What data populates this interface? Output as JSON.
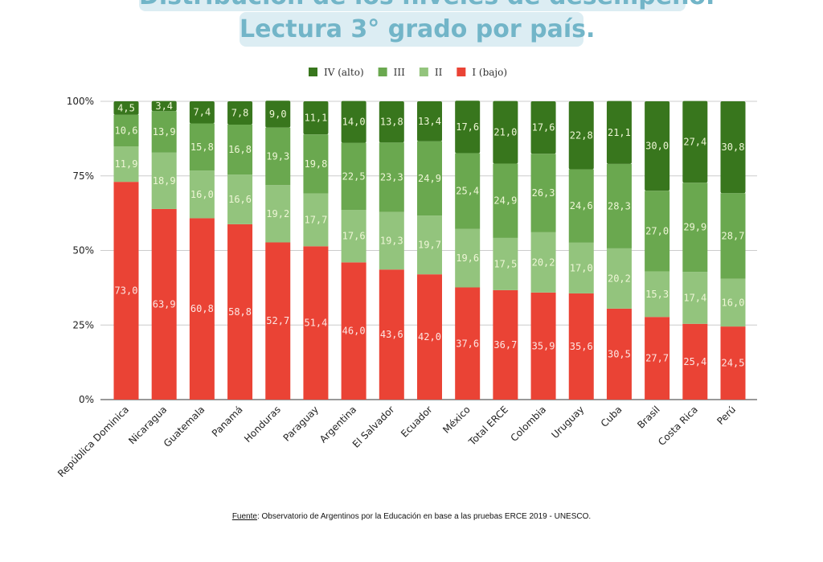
{
  "title_line1": "Distribución de los niveles de desempeño.",
  "title_line2": "Lectura 3° grado por país.",
  "footnote_label": "Fuente",
  "footnote_text": ": Observatorio de Argentinos por la Educación en base a las pruebas ERCE 2019 - UNESCO.",
  "chart_data": {
    "type": "bar",
    "stacked": true,
    "percent": true,
    "categories": [
      "República Dominica",
      "Nicaragua",
      "Guatemala",
      "Panamá",
      "Honduras",
      "Paraguay",
      "Argentina",
      "El Salvador",
      "Ecuador",
      "México",
      "Total ERCE",
      "Colombia",
      "Uruguay",
      "Cuba",
      "Brasil",
      "Costa Rica",
      "Perú"
    ],
    "series": [
      {
        "name": "I (bajo)",
        "color": "#ea4335",
        "values": [
          73.0,
          63.9,
          60.8,
          58.8,
          52.7,
          51.4,
          46.0,
          43.6,
          42.0,
          37.6,
          36.7,
          35.9,
          35.6,
          30.5,
          27.7,
          25.4,
          24.5
        ]
      },
      {
        "name": "II",
        "color": "#93c47d",
        "values": [
          11.9,
          18.9,
          16.0,
          16.6,
          19.2,
          17.7,
          17.6,
          19.3,
          19.7,
          19.6,
          17.5,
          20.2,
          17.0,
          20.2,
          15.3,
          17.4,
          16.0
        ]
      },
      {
        "name": "III",
        "color": "#6aa84f",
        "values": [
          10.6,
          13.9,
          15.8,
          16.8,
          19.3,
          19.8,
          22.5,
          23.3,
          24.9,
          25.4,
          24.9,
          26.3,
          24.6,
          28.3,
          27.0,
          29.9,
          28.7
        ]
      },
      {
        "name": "IV (alto)",
        "color": "#38761d",
        "values": [
          4.5,
          3.4,
          7.4,
          7.8,
          9.0,
          11.1,
          14.0,
          13.8,
          13.4,
          17.6,
          21.0,
          17.6,
          22.8,
          21.1,
          30.0,
          27.4,
          30.8
        ]
      }
    ],
    "legend_order": [
      "IV (alto)",
      "III",
      "II",
      "I (bajo)"
    ],
    "legend_position": "top",
    "y_ticks": [
      "0%",
      "25%",
      "50%",
      "75%",
      "100%"
    ],
    "ylim": [
      0,
      100
    ],
    "grid": true,
    "decimal_separator": ","
  }
}
